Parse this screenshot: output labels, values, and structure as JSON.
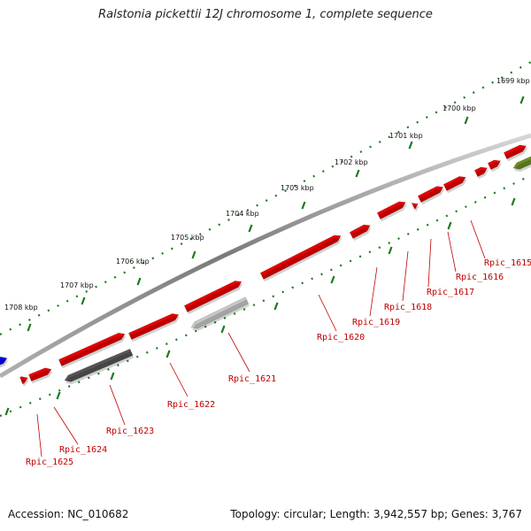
{
  "title": "Ralstonia pickettii 12J chromosome 1, complete sequence",
  "footer": {
    "accession": "Accession: NC_010682",
    "topology": "Topology: circular; Length: 3,942,557 bp; Genes: 3,767"
  },
  "colors": {
    "backbone": "#8a8a8a",
    "gene_red": "#e80000",
    "gene_gray_dark": "#555555",
    "gene_gray_light": "#c8c8c8",
    "gene_green": "#6b8e23",
    "gene_blue": "#0000ee",
    "tick_green": "#1a7a1a",
    "label_red": "#c00000"
  },
  "kbp_labels": [
    "1699 kbp",
    "1700 kbp",
    "1701 kbp",
    "1702 kbp",
    "1703 kbp",
    "1704 kbp",
    "1705 kbp",
    "1706 kbp",
    "1707 kbp",
    "1708 kbp"
  ],
  "gene_labels": [
    "Rpic_1615",
    "Rpic_1616",
    "Rpic_1617",
    "Rpic_1618",
    "Rpic_1619",
    "Rpic_1620",
    "Rpic_1621",
    "Rpic_1622",
    "Rpic_1623",
    "Rpic_1624",
    "Rpic_1625"
  ]
}
